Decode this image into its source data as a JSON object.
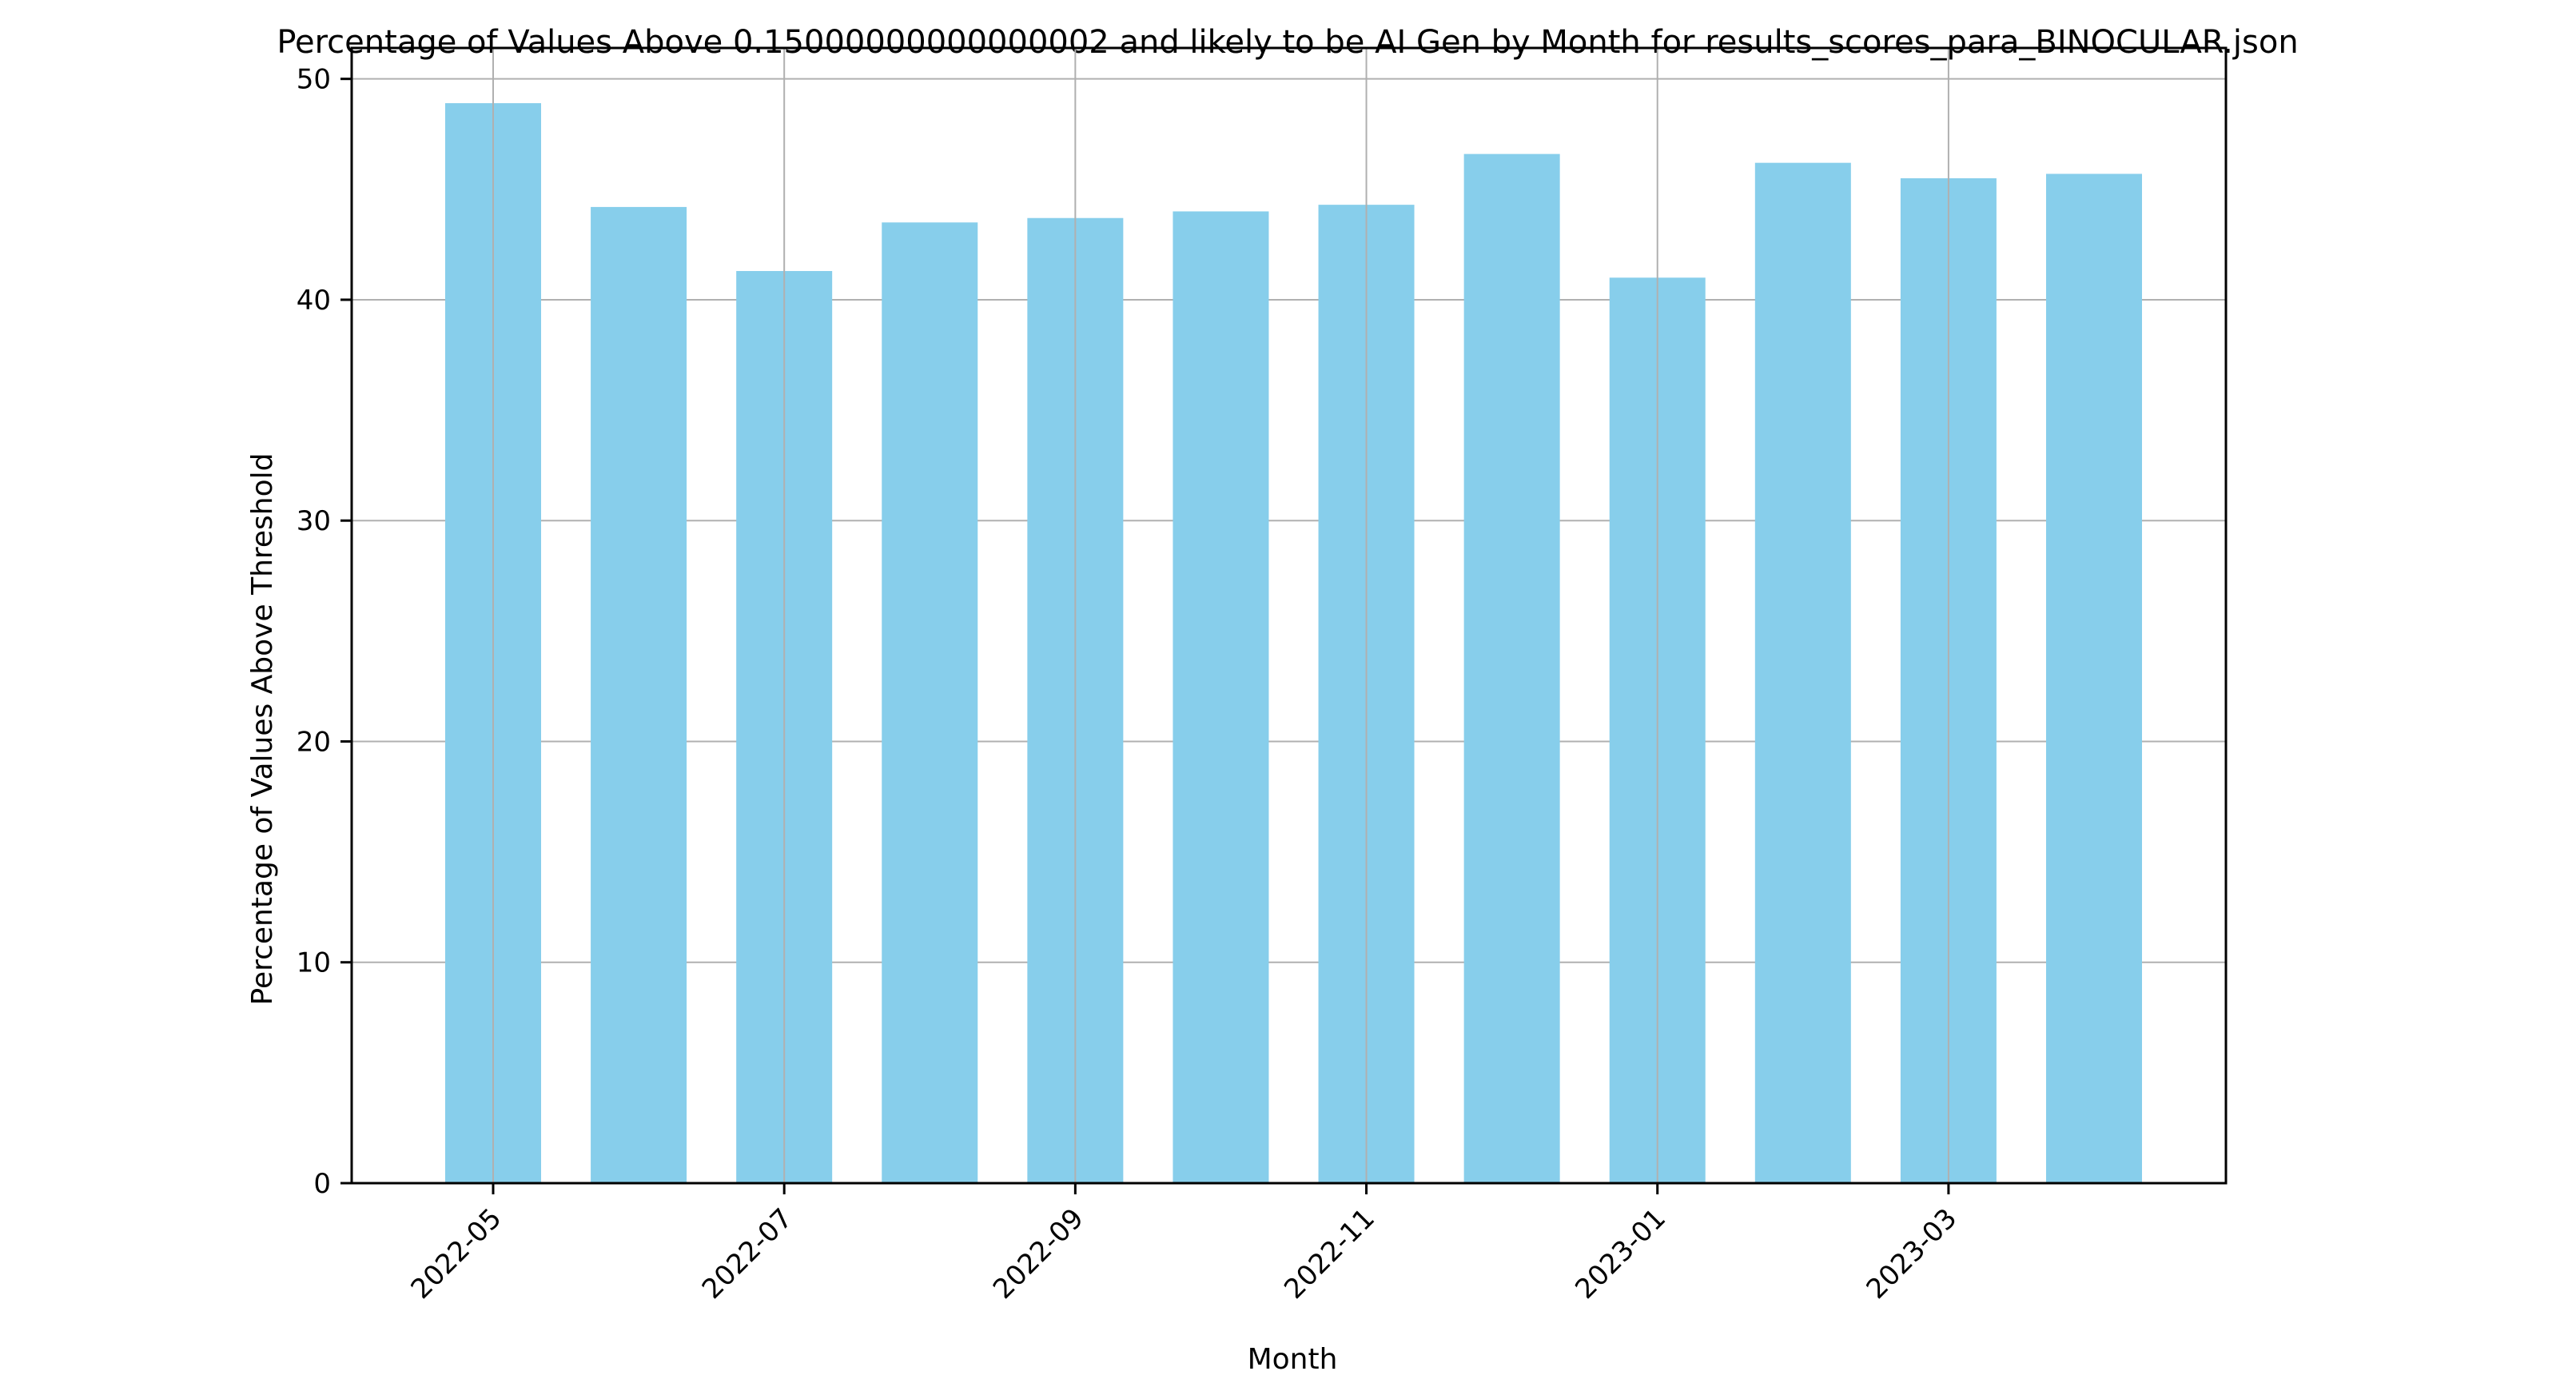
{
  "chart_data": {
    "type": "bar",
    "title": "Percentage of Values Above 0.15000000000000002 and likely to be AI Gen by Month for results_scores_para_BINOCULAR.json",
    "xlabel": "Month",
    "ylabel": "Percentage of Values Above Threshold",
    "x_type": "date",
    "categories": [
      "2022-05",
      "2022-06",
      "2022-07",
      "2022-08",
      "2022-09",
      "2022-10",
      "2022-11",
      "2022-12",
      "2023-01",
      "2023-02",
      "2023-03",
      "2023-04"
    ],
    "values": [
      48.9,
      44.2,
      41.3,
      43.5,
      43.7,
      44.0,
      44.3,
      46.6,
      41.0,
      46.2,
      45.5,
      45.7
    ],
    "xtick_labels": [
      "2022-05",
      "2022-07",
      "2022-09",
      "2022-11",
      "2023-01",
      "2023-03"
    ],
    "ylim": [
      0,
      51.4
    ],
    "yticks": [
      0,
      10,
      20,
      30,
      40,
      50
    ],
    "grid": true,
    "bar_color": "#87ceeb",
    "grid_color": "#b0b0b0",
    "axis_color": "#000000"
  }
}
